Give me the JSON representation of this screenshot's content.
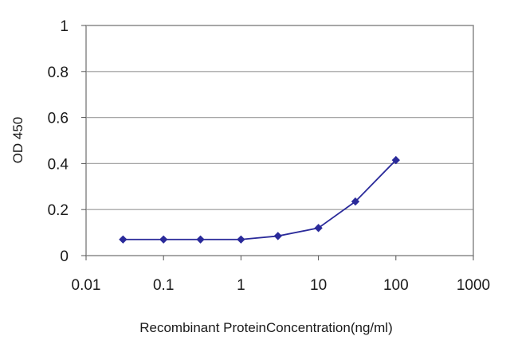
{
  "chart_data": {
    "type": "line",
    "title": "",
    "xlabel": "Recombinant ProteinConcentration(ng/ml)",
    "ylabel": "OD 450",
    "x_scale": "log",
    "xlim": [
      0.01,
      1000
    ],
    "ylim": [
      0,
      1
    ],
    "x_ticks": [
      "0.01",
      "0.1",
      "1",
      "10",
      "100",
      "1000"
    ],
    "y_ticks": [
      "0",
      "0.2",
      "0.4",
      "0.6",
      "0.8",
      "1"
    ],
    "grid": "horizontal",
    "legend": "none",
    "series": [
      {
        "x": [
          0.03,
          0.1,
          0.3,
          1,
          3,
          10,
          30,
          100
        ],
        "y": [
          0.07,
          0.07,
          0.07,
          0.07,
          0.085,
          0.12,
          0.235,
          0.415
        ],
        "color": "#2a2a9a"
      }
    ]
  }
}
